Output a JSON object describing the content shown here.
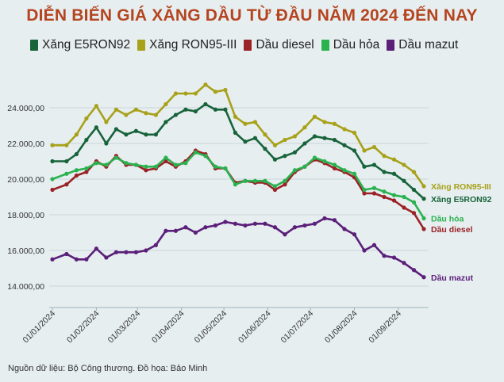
{
  "title": "DIỄN BIẾN GIÁ XĂNG DẦU TỪ ĐẦU NĂM 2024 ĐẾN NAY",
  "footer": "Nguồn dữ liệu: Bộ Công thương. Đồ họa: Bảo Minh",
  "chart_data": {
    "type": "line",
    "title": "DIỄN BIẾN GIÁ XĂNG DẦU TỪ ĐẦU NĂM 2024 ĐẾN NAY",
    "ylim": [
      12800,
      25600
    ],
    "yticks": [
      14000,
      16000,
      18000,
      20000,
      22000,
      24000
    ],
    "ytick_labels": [
      "14.000,00",
      "16.000,00",
      "18.000,00",
      "20.000,00",
      "22.000,00",
      "24.000,00"
    ],
    "xticks": [
      "01/01/2024",
      "01/02/2024",
      "01/03/2024",
      "01/04/2024",
      "01/05/2024",
      "01/06/2024",
      "01/07/2024",
      "01/08/2024",
      "01/09/2024"
    ],
    "grid": "horizontal",
    "legend_position": "top",
    "x": [
      "2024-01-01",
      "2024-01-11",
      "2024-01-18",
      "2024-01-25",
      "2024-02-01",
      "2024-02-08",
      "2024-02-15",
      "2024-02-22",
      "2024-02-29",
      "2024-03-07",
      "2024-03-14",
      "2024-03-21",
      "2024-03-28",
      "2024-04-04",
      "2024-04-11",
      "2024-04-18",
      "2024-04-25",
      "2024-05-02",
      "2024-05-09",
      "2024-05-16",
      "2024-05-23",
      "2024-05-30",
      "2024-06-06",
      "2024-06-13",
      "2024-06-20",
      "2024-06-27",
      "2024-07-04",
      "2024-07-11",
      "2024-07-18",
      "2024-07-25",
      "2024-08-01",
      "2024-08-08",
      "2024-08-15",
      "2024-08-22",
      "2024-08-29",
      "2024-09-05",
      "2024-09-12",
      "2024-09-19"
    ],
    "series": [
      {
        "name": "Xăng E5RON92",
        "end_label": "Xăng E5RON92",
        "color": "#17633a",
        "values": [
          21000,
          21000,
          21400,
          22200,
          22900,
          22000,
          22800,
          22500,
          22700,
          22500,
          22500,
          23200,
          23600,
          23900,
          23800,
          24200,
          23900,
          23900,
          22600,
          22100,
          22300,
          21700,
          21100,
          21300,
          21500,
          22000,
          22400,
          22300,
          22200,
          21900,
          21600,
          20700,
          20800,
          20400,
          20300,
          19900,
          19400,
          18900
        ]
      },
      {
        "name": "Xăng RON95-III",
        "end_label": "Xăng RON95-III",
        "color": "#a8a11a",
        "values": [
          21900,
          21900,
          22500,
          23400,
          24100,
          23200,
          23900,
          23600,
          23900,
          23700,
          23600,
          24200,
          24800,
          24800,
          24800,
          25300,
          24900,
          25000,
          23500,
          23100,
          23200,
          22500,
          21900,
          22200,
          22400,
          22900,
          23500,
          23200,
          23100,
          22800,
          22600,
          21600,
          21800,
          21300,
          21100,
          20800,
          20400,
          19600
        ]
      },
      {
        "name": "Dầu diesel",
        "end_label": "Dầu diesel",
        "color": "#9b2226",
        "values": [
          19400,
          19700,
          20200,
          20400,
          21000,
          20700,
          21300,
          20800,
          20800,
          20500,
          20600,
          21000,
          20700,
          21000,
          21600,
          21400,
          20600,
          20600,
          19800,
          19900,
          19800,
          19800,
          19400,
          19700,
          20400,
          20700,
          21100,
          20900,
          20600,
          20400,
          20100,
          19200,
          19200,
          19000,
          18800,
          18400,
          18100,
          17200
        ]
      },
      {
        "name": "Dầu hỏa",
        "end_label": "Dầu hỏa",
        "color": "#2ab24f",
        "values": [
          20000,
          20300,
          20500,
          20600,
          20900,
          20800,
          21200,
          20900,
          20800,
          20700,
          20700,
          21200,
          20800,
          20900,
          21500,
          21300,
          20700,
          20600,
          19700,
          19900,
          19900,
          19900,
          19600,
          19900,
          20500,
          20700,
          21200,
          21000,
          20800,
          20500,
          20300,
          19400,
          19500,
          19300,
          19100,
          19000,
          18700,
          17800
        ]
      },
      {
        "name": "Dầu mazut",
        "end_label": "Dầu mazut",
        "color": "#5b1f79",
        "values": [
          15500,
          15800,
          15500,
          15500,
          16100,
          15600,
          15900,
          15900,
          15900,
          16000,
          16300,
          17100,
          17100,
          17300,
          17000,
          17300,
          17400,
          17600,
          17500,
          17400,
          17500,
          17500,
          17300,
          16900,
          17300,
          17400,
          17500,
          17800,
          17700,
          17200,
          16900,
          16000,
          16300,
          15700,
          15600,
          15300,
          14900,
          14500
        ]
      }
    ]
  }
}
